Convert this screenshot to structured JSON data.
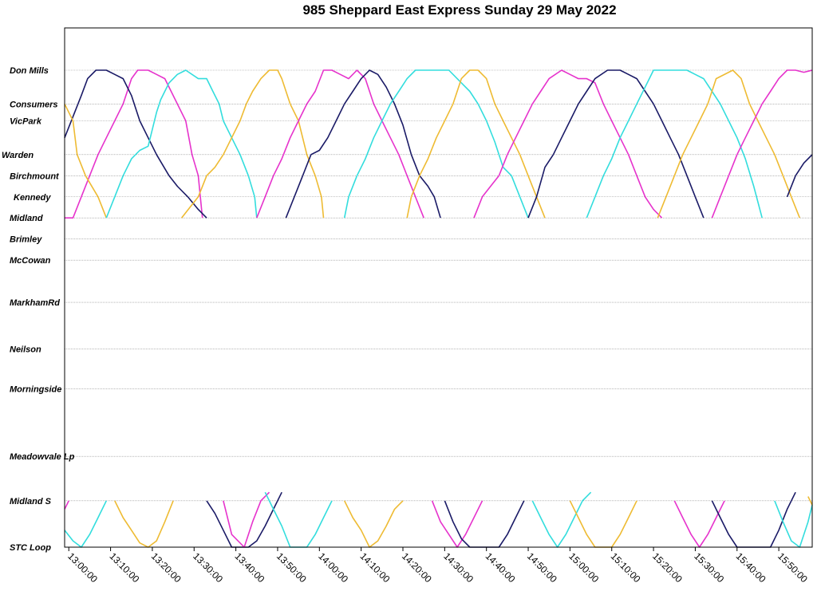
{
  "chart_data": {
    "type": "line",
    "title": "985 Sheppard East Express Sunday 29 May 2022",
    "xlabel": "",
    "ylabel": "",
    "x_range": [
      "12:59:00",
      "15:58:00"
    ],
    "x_ticks": [
      "13:00:00",
      "13:10:00",
      "13:20:00",
      "13:30:00",
      "13:40:00",
      "13:50:00",
      "14:00:00",
      "14:10:00",
      "14:20:00",
      "14:30:00",
      "14:40:00",
      "14:50:00",
      "15:00:00",
      "15:10:00",
      "15:20:00",
      "15:30:00",
      "15:40:00",
      "15:50:00"
    ],
    "stops": [
      {
        "name": "Don Mills",
        "pos": 0
      },
      {
        "name": "Consumers",
        "pos": 1.6
      },
      {
        "name": "VicPark",
        "pos": 2.4
      },
      {
        "name": "Warden",
        "pos": 4.0
      },
      {
        "name": "Birchmount",
        "pos": 5.0
      },
      {
        "name": "Kennedy",
        "pos": 6.0
      },
      {
        "name": "Midland",
        "pos": 7.0
      },
      {
        "name": "Brimley",
        "pos": 8.0
      },
      {
        "name": "McCowan",
        "pos": 9.0
      },
      {
        "name": "MarkhamRd",
        "pos": 11.0
      },
      {
        "name": "Neilson",
        "pos": 13.2
      },
      {
        "name": "Morningside",
        "pos": 15.1
      },
      {
        "name": "Meadowvale Lp",
        "pos": 18.3
      },
      {
        "name": "Midland S",
        "pos": 20.4
      },
      {
        "name": "STC Loop",
        "pos": 22.6
      }
    ],
    "grid": true,
    "legend": "none",
    "colors": {
      "navy": "#1a1a66",
      "magenta": "#e633cc",
      "cyan": "#33dddd",
      "gold": "#eebb33"
    },
    "series": [
      {
        "color": "#e633cc",
        "x": [
          "12:59:00",
          "13:01:00",
          "13:03:00",
          "13:05:00",
          "13:07:00",
          "13:09:00",
          "13:11:00",
          "13:13:00",
          "13:15:00",
          "13:16:30",
          "13:19:00",
          "13:21:00",
          "13:23:00",
          "13:26:00",
          "13:28:00",
          "13:29:30",
          "13:31:00",
          "13:32:00"
        ],
        "y": [
          7.0,
          7.0,
          6.0,
          5.0,
          4.0,
          3.2,
          2.4,
          1.6,
          0.4,
          0.0,
          0.0,
          0.2,
          0.4,
          1.6,
          2.4,
          4.0,
          5.0,
          7.0
        ]
      },
      {
        "color": "#1a1a66",
        "x": [
          "12:59:00",
          "13:01:00",
          "13:03:00",
          "13:04:30",
          "13:06:30",
          "13:09:00",
          "13:11:00",
          "13:13:00",
          "13:15:00",
          "13:17:00",
          "13:19:00",
          "13:21:00",
          "13:24:00",
          "13:26:00",
          "13:28:30",
          "13:31:00",
          "13:33:00"
        ],
        "y": [
          3.2,
          2.2,
          1.2,
          0.4,
          0.0,
          0.0,
          0.2,
          0.4,
          1.2,
          2.4,
          3.2,
          4.0,
          5.0,
          5.5,
          6.0,
          6.6,
          7.0
        ]
      },
      {
        "color": "#eebb33",
        "x": [
          "12:59:00",
          "13:01:00",
          "13:02:00",
          "13:04:00",
          "13:07:00",
          "13:09:00"
        ],
        "y": [
          1.6,
          2.4,
          4.0,
          5.0,
          6.0,
          7.0
        ]
      },
      {
        "color": "#33dddd",
        "x": [
          "13:09:00",
          "13:11:00",
          "13:13:00",
          "13:15:00",
          "13:17:00",
          "13:19:00",
          "13:21:00",
          "13:22:00",
          "13:23:00",
          "13:24:00",
          "13:26:00",
          "13:28:00",
          "13:31:00",
          "13:33:00",
          "13:34:30",
          "13:36:00",
          "13:37:00",
          "13:39:00",
          "13:41:00",
          "13:43:00",
          "13:44:30",
          "13:45:00"
        ],
        "y": [
          7.0,
          6.0,
          5.0,
          4.2,
          3.8,
          3.6,
          2.0,
          1.4,
          1.0,
          0.6,
          0.2,
          0.0,
          0.4,
          0.4,
          1.0,
          1.6,
          2.4,
          3.2,
          4.0,
          5.0,
          6.0,
          7.0
        ]
      },
      {
        "color": "#eebb33",
        "x": [
          "13:27:00",
          "13:29:00",
          "13:31:00",
          "13:33:00",
          "13:35:00",
          "13:37:00",
          "13:39:00",
          "13:41:00",
          "13:42:30",
          "13:44:00",
          "13:46:00",
          "13:48:00",
          "13:50:00",
          "13:51:00",
          "13:53:00",
          "13:55:00",
          "13:57:00",
          "13:59:00",
          "14:00:30",
          "14:01:00"
        ],
        "y": [
          7.0,
          6.5,
          6.0,
          5.0,
          4.6,
          4.0,
          3.2,
          2.4,
          1.6,
          1.0,
          0.4,
          0.0,
          0.0,
          0.4,
          1.6,
          2.4,
          4.0,
          5.0,
          6.0,
          7.0
        ]
      },
      {
        "color": "#e633cc",
        "x": [
          "13:45:00",
          "13:47:00",
          "13:49:00",
          "13:51:00",
          "13:53:00",
          "13:55:00",
          "13:57:00",
          "13:59:00",
          "14:01:00",
          "14:03:00",
          "14:05:00",
          "14:07:00",
          "14:09:00",
          "14:11:00",
          "14:13:00",
          "14:15:00",
          "14:17:00",
          "14:19:00",
          "14:21:00",
          "14:23:00",
          "14:25:00"
        ],
        "y": [
          7.0,
          6.0,
          5.0,
          4.2,
          3.2,
          2.4,
          1.6,
          1.0,
          0.0,
          0.0,
          0.2,
          0.4,
          0.0,
          0.4,
          1.6,
          2.4,
          3.2,
          4.0,
          5.0,
          6.0,
          7.0
        ]
      },
      {
        "color": "#1a1a66",
        "x": [
          "13:52:00",
          "13:54:00",
          "13:56:00",
          "13:58:00",
          "14:00:00",
          "14:02:00",
          "14:04:00",
          "14:06:00",
          "14:08:00",
          "14:10:00",
          "14:12:00",
          "14:14:00",
          "14:16:00",
          "14:18:00",
          "14:20:00",
          "14:22:00",
          "14:24:00",
          "14:26:00",
          "14:27:30",
          "14:29:00"
        ],
        "y": [
          7.0,
          6.0,
          5.0,
          4.0,
          3.8,
          3.2,
          2.4,
          1.6,
          1.0,
          0.4,
          0.0,
          0.2,
          0.8,
          1.6,
          2.6,
          4.0,
          5.0,
          5.5,
          6.0,
          7.0
        ]
      },
      {
        "color": "#33dddd",
        "x": [
          "14:06:00",
          "14:07:00",
          "14:09:00",
          "14:11:00",
          "14:13:00",
          "14:15:00",
          "14:17:00",
          "14:19:00",
          "14:21:00",
          "14:23:00",
          "14:27:00",
          "14:31:00",
          "14:34:00",
          "14:36:00",
          "14:38:00",
          "14:40:00",
          "14:42:00",
          "14:44:00",
          "14:46:00",
          "14:48:00",
          "14:50:00"
        ],
        "y": [
          7.0,
          6.0,
          5.0,
          4.2,
          3.2,
          2.4,
          1.6,
          1.0,
          0.4,
          0.0,
          0.0,
          0.0,
          0.6,
          1.0,
          1.6,
          2.4,
          3.4,
          4.6,
          5.0,
          6.0,
          7.0
        ]
      },
      {
        "color": "#eebb33",
        "x": [
          "14:21:00",
          "14:22:00",
          "14:24:00",
          "14:26:00",
          "14:28:00",
          "14:30:00",
          "14:32:00",
          "14:34:00",
          "14:36:00",
          "14:38:00",
          "14:40:00",
          "14:42:00",
          "14:44:00",
          "14:46:00",
          "14:48:00",
          "14:50:00",
          "14:52:00",
          "14:54:00"
        ],
        "y": [
          7.0,
          6.0,
          5.0,
          4.2,
          3.2,
          2.4,
          1.6,
          0.4,
          0.0,
          0.0,
          0.4,
          1.6,
          2.4,
          3.2,
          4.0,
          5.0,
          6.0,
          7.0
        ]
      },
      {
        "color": "#e633cc",
        "x": [
          "14:37:00",
          "14:39:00",
          "14:41:00",
          "14:43:00",
          "14:45:00",
          "14:47:00",
          "14:49:00",
          "14:51:00",
          "14:53:00",
          "14:55:00",
          "14:58:00",
          "15:00:00",
          "15:02:00",
          "15:04:00",
          "15:06:00",
          "15:08:00",
          "15:10:00",
          "15:12:00",
          "15:14:00",
          "15:16:00",
          "15:18:00",
          "15:20:00",
          "15:22:00"
        ],
        "y": [
          7.0,
          6.0,
          5.5,
          5.0,
          4.0,
          3.2,
          2.4,
          1.6,
          1.0,
          0.4,
          0.0,
          0.2,
          0.4,
          0.4,
          0.6,
          1.6,
          2.4,
          3.2,
          4.0,
          5.0,
          6.0,
          6.6,
          7.0
        ]
      },
      {
        "color": "#1a1a66",
        "x": [
          "14:50:00",
          "14:52:00",
          "14:54:00",
          "14:56:00",
          "14:58:00",
          "15:00:00",
          "15:02:00",
          "15:04:00",
          "15:06:00",
          "15:09:00",
          "15:12:00",
          "15:14:00",
          "15:16:00",
          "15:18:00",
          "15:20:00",
          "15:22:00",
          "15:24:00",
          "15:26:00",
          "15:28:00",
          "15:30:00",
          "15:32:00"
        ],
        "y": [
          7.0,
          6.0,
          4.6,
          4.0,
          3.2,
          2.4,
          1.6,
          1.0,
          0.4,
          0.0,
          0.0,
          0.2,
          0.4,
          1.0,
          1.6,
          2.4,
          3.2,
          4.0,
          5.0,
          6.0,
          7.0
        ]
      },
      {
        "color": "#33dddd",
        "x": [
          "15:04:00",
          "15:06:00",
          "15:08:00",
          "15:10:00",
          "15:12:00",
          "15:14:00",
          "15:16:00",
          "15:18:00",
          "15:20:00",
          "15:24:00",
          "15:28:00",
          "15:30:00",
          "15:32:00",
          "15:34:00",
          "15:36:00",
          "15:38:00",
          "15:40:00",
          "15:42:00",
          "15:44:00",
          "15:46:00"
        ],
        "y": [
          7.0,
          6.0,
          5.0,
          4.2,
          3.2,
          2.4,
          1.6,
          0.8,
          0.0,
          0.0,
          0.0,
          0.2,
          0.4,
          1.0,
          1.6,
          2.4,
          3.2,
          4.2,
          5.5,
          7.0
        ]
      },
      {
        "color": "#eebb33",
        "x": [
          "15:21:00",
          "15:23:00",
          "15:25:00",
          "15:27:00",
          "15:29:00",
          "15:31:00",
          "15:33:00",
          "15:35:00",
          "15:39:00",
          "15:41:00",
          "15:43:00",
          "15:45:00",
          "15:47:00",
          "15:49:00",
          "15:51:00",
          "15:53:00",
          "15:55:00"
        ],
        "y": [
          7.0,
          6.0,
          5.0,
          4.0,
          3.2,
          2.4,
          1.6,
          0.4,
          0.0,
          0.4,
          1.6,
          2.4,
          3.2,
          4.0,
          5.0,
          6.0,
          7.0
        ]
      },
      {
        "color": "#e633cc",
        "x": [
          "15:34:00",
          "15:36:00",
          "15:38:00",
          "15:40:00",
          "15:42:00",
          "15:44:00",
          "15:46:00",
          "15:48:00",
          "15:50:00",
          "15:52:00",
          "15:54:00",
          "15:56:00",
          "15:58:00"
        ],
        "y": [
          7.0,
          6.0,
          5.0,
          4.0,
          3.2,
          2.4,
          1.6,
          1.0,
          0.4,
          0.0,
          0.0,
          0.1,
          0.0
        ]
      },
      {
        "color": "#1a1a66",
        "x": [
          "15:52:00",
          "15:54:00",
          "15:56:00",
          "15:58:00"
        ],
        "y": [
          6.0,
          5.0,
          4.4,
          4.0
        ]
      },
      {
        "color": "#e633cc",
        "x": [
          "12:59:00",
          "13:00:00"
        ],
        "y": [
          20.8,
          20.4
        ]
      },
      {
        "color": "#33dddd",
        "x": [
          "12:59:00",
          "13:01:00",
          "13:03:00",
          "13:05:00",
          "13:07:00",
          "13:09:00"
        ],
        "y": [
          21.8,
          22.3,
          22.6,
          22.0,
          21.2,
          20.4
        ]
      },
      {
        "color": "#eebb33",
        "x": [
          "13:11:00",
          "13:13:00",
          "13:15:00",
          "13:17:00",
          "13:19:00",
          "13:21:00",
          "13:23:00",
          "13:25:00"
        ],
        "y": [
          20.4,
          21.2,
          21.8,
          22.4,
          22.6,
          22.3,
          21.4,
          20.4
        ]
      },
      {
        "color": "#1a1a66",
        "x": [
          "13:33:00",
          "13:35:00",
          "13:37:00",
          "13:39:00",
          "13:43:00",
          "13:45:00",
          "13:47:00",
          "13:49:00",
          "13:51:00"
        ],
        "y": [
          20.4,
          21.0,
          21.8,
          22.6,
          22.6,
          22.3,
          21.6,
          20.8,
          20.0
        ]
      },
      {
        "color": "#e633cc",
        "x": [
          "13:37:00",
          "13:39:00",
          "13:42:00",
          "13:44:00",
          "13:46:00",
          "13:48:00"
        ],
        "y": [
          20.4,
          22.0,
          22.6,
          21.4,
          20.4,
          20.0
        ]
      },
      {
        "color": "#33dddd",
        "x": [
          "13:47:00",
          "13:49:00",
          "13:51:00",
          "13:53:00",
          "13:57:00",
          "13:59:00",
          "14:01:00",
          "14:03:00"
        ],
        "y": [
          20.0,
          20.8,
          21.6,
          22.6,
          22.6,
          22.0,
          21.2,
          20.4
        ]
      },
      {
        "color": "#eebb33",
        "x": [
          "14:06:00",
          "14:08:00",
          "14:10:00",
          "14:12:00",
          "14:14:00",
          "14:16:00",
          "14:18:00",
          "14:20:00"
        ],
        "y": [
          20.4,
          21.2,
          21.8,
          22.6,
          22.3,
          21.6,
          20.8,
          20.4
        ]
      },
      {
        "color": "#e633cc",
        "x": [
          "14:27:00",
          "14:29:00",
          "14:31:00",
          "14:33:00",
          "14:35:00",
          "14:37:00",
          "14:39:00"
        ],
        "y": [
          20.4,
          21.4,
          22.0,
          22.6,
          22.0,
          21.2,
          20.4
        ]
      },
      {
        "color": "#1a1a66",
        "x": [
          "14:30:00",
          "14:32:00",
          "14:34:00",
          "14:36:00",
          "14:43:00",
          "14:45:00",
          "14:47:00",
          "14:49:00"
        ],
        "y": [
          20.4,
          21.4,
          22.2,
          22.6,
          22.6,
          22.0,
          21.2,
          20.4
        ]
      },
      {
        "color": "#33dddd",
        "x": [
          "14:51:00",
          "14:53:00",
          "14:55:00",
          "14:57:00",
          "14:59:00",
          "15:01:00",
          "15:03:00",
          "15:05:00"
        ],
        "y": [
          20.4,
          21.2,
          22.0,
          22.6,
          22.0,
          21.2,
          20.4,
          20.0
        ]
      },
      {
        "color": "#eebb33",
        "x": [
          "15:00:00",
          "15:02:00",
          "15:04:00",
          "15:06:00",
          "15:10:00",
          "15:12:00",
          "15:14:00",
          "15:16:00"
        ],
        "y": [
          20.4,
          21.2,
          22.0,
          22.6,
          22.6,
          22.0,
          21.2,
          20.4
        ]
      },
      {
        "color": "#e633cc",
        "x": [
          "15:25:00",
          "15:27:00",
          "15:29:00",
          "15:31:00",
          "15:33:00",
          "15:35:00",
          "15:37:00"
        ],
        "y": [
          20.4,
          21.2,
          22.0,
          22.6,
          22.0,
          21.2,
          20.4
        ]
      },
      {
        "color": "#1a1a66",
        "x": [
          "15:34:00",
          "15:36:00",
          "15:38:00",
          "15:40:00",
          "15:48:00",
          "15:50:00",
          "15:52:00",
          "15:54:00"
        ],
        "y": [
          20.4,
          21.2,
          22.0,
          22.6,
          22.6,
          21.8,
          20.8,
          20.0
        ]
      },
      {
        "color": "#33dddd",
        "x": [
          "15:49:00",
          "15:51:00",
          "15:53:00",
          "15:55:00",
          "15:57:00",
          "15:58:00"
        ],
        "y": [
          20.4,
          21.4,
          22.3,
          22.6,
          21.4,
          20.6
        ]
      },
      {
        "color": "#eebb33",
        "x": [
          "15:57:00",
          "15:58:00"
        ],
        "y": [
          20.2,
          20.6
        ]
      }
    ]
  }
}
